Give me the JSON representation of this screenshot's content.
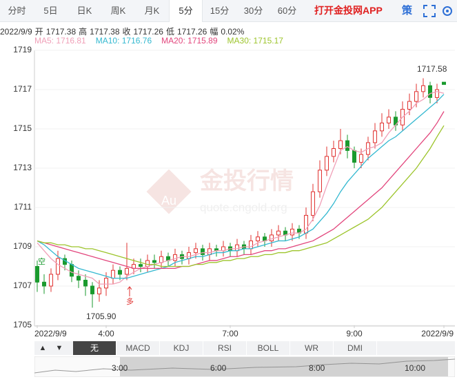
{
  "tabs": [
    "分时",
    "5日",
    "日K",
    "周K",
    "月K",
    "5分",
    "15分",
    "30分",
    "60分"
  ],
  "active_tab": 5,
  "app_link": "打开金投网APP",
  "strategy": "策",
  "info": {
    "date": "2022/9/9",
    "items": [
      {
        "label": "开",
        "value": "1717.38"
      },
      {
        "label": "高",
        "value": "1717.38"
      },
      {
        "label": "收",
        "value": "1717.26"
      },
      {
        "label": "低",
        "value": "1717.26"
      },
      {
        "label": "幅",
        "value": "0.02%"
      }
    ]
  },
  "indicators": [
    "无",
    "MACD",
    "KDJ",
    "RSI",
    "BOLL",
    "WR",
    "DMI"
  ],
  "active_indicator": 0,
  "arrows": [
    "▲",
    "▼"
  ],
  "navigator": {
    "labels": [
      "3:00",
      "6:00",
      "8:00",
      "10:00"
    ]
  },
  "watermark": [
    "金投行情",
    "Au",
    "quote.cngold.org"
  ],
  "signals": [
    "空",
    "多"
  ],
  "chart_data": {
    "type": "candlestick",
    "up_color": "#e0312f",
    "down_color": "#1a9a2e",
    "categories": [
      "2022/9/9",
      null,
      null,
      null,
      null,
      null,
      null,
      null,
      null,
      null,
      "4:00",
      null,
      null,
      null,
      null,
      null,
      null,
      null,
      null,
      null,
      null,
      null,
      null,
      null,
      null,
      null,
      null,
      null,
      "7:00",
      null,
      null,
      null,
      null,
      null,
      null,
      null,
      null,
      null,
      null,
      null,
      null,
      null,
      null,
      null,
      null,
      null,
      "9:00",
      null,
      null,
      null,
      null,
      null,
      null,
      null,
      null,
      null,
      null,
      null,
      null,
      "2022/9/9"
    ],
    "open": [
      1708.0,
      1707.2,
      1707.0,
      1707.6,
      1708.4,
      1708.1,
      1707.5,
      1707.3,
      1707.0,
      1706.6,
      1706.9,
      1707.4,
      1707.8,
      1707.6,
      1707.9,
      1708.1,
      1708.0,
      1708.3,
      1708.2,
      1708.5,
      1708.3,
      1708.6,
      1708.4,
      1708.7,
      1708.9,
      1708.6,
      1708.9,
      1708.8,
      1709.0,
      1708.8,
      1709.1,
      1708.9,
      1709.3,
      1709.5,
      1709.3,
      1709.6,
      1709.8,
      1709.6,
      1709.9,
      1709.7,
      1710.6,
      1711.8,
      1712.9,
      1713.6,
      1714.0,
      1714.4,
      1713.9,
      1713.3,
      1713.7,
      1714.3,
      1714.9,
      1715.3,
      1715.6,
      1715.2,
      1716.0,
      1716.4,
      1716.9,
      1717.2,
      1716.6,
      1717.38
    ],
    "high": [
      1708.3,
      1707.6,
      1707.9,
      1708.8,
      1708.6,
      1708.3,
      1707.8,
      1707.6,
      1707.2,
      1707.3,
      1707.7,
      1708.1,
      1708.0,
      1709.2,
      1708.4,
      1708.4,
      1708.6,
      1708.6,
      1708.8,
      1708.7,
      1708.9,
      1708.8,
      1709.0,
      1709.2,
      1709.1,
      1709.2,
      1709.1,
      1709.3,
      1709.2,
      1709.4,
      1709.3,
      1709.6,
      1709.8,
      1709.7,
      1709.9,
      1710.1,
      1710.0,
      1710.2,
      1710.1,
      1711.0,
      1712.2,
      1713.4,
      1714.1,
      1714.4,
      1715.0,
      1714.7,
      1714.1,
      1714.0,
      1714.6,
      1715.3,
      1715.8,
      1716.0,
      1715.9,
      1716.4,
      1716.8,
      1717.3,
      1717.58,
      1717.4,
      1717.3,
      1717.38
    ],
    "low": [
      1706.7,
      1706.6,
      1706.7,
      1707.3,
      1707.8,
      1707.2,
      1706.9,
      1706.5,
      1705.9,
      1706.2,
      1706.5,
      1707.1,
      1707.3,
      1707.3,
      1707.6,
      1707.7,
      1707.7,
      1707.9,
      1707.9,
      1708.0,
      1708.0,
      1708.1,
      1708.1,
      1708.4,
      1708.3,
      1708.3,
      1708.5,
      1708.5,
      1708.5,
      1708.5,
      1708.6,
      1708.6,
      1709.0,
      1709.0,
      1709.0,
      1709.3,
      1709.3,
      1709.3,
      1709.4,
      1709.4,
      1710.3,
      1711.5,
      1712.6,
      1713.3,
      1713.7,
      1713.5,
      1713.0,
      1713.0,
      1713.4,
      1714.0,
      1714.6,
      1715.0,
      1714.9,
      1714.9,
      1715.7,
      1716.1,
      1716.6,
      1716.3,
      1716.3,
      1717.26
    ],
    "close": [
      1707.2,
      1707.0,
      1707.6,
      1708.4,
      1708.1,
      1707.5,
      1707.3,
      1707.0,
      1706.6,
      1706.9,
      1707.4,
      1707.8,
      1707.6,
      1707.9,
      1708.1,
      1708.0,
      1708.3,
      1708.2,
      1708.5,
      1708.3,
      1708.6,
      1708.4,
      1708.7,
      1708.9,
      1708.6,
      1708.9,
      1708.8,
      1709.0,
      1708.8,
      1709.1,
      1708.9,
      1709.3,
      1709.5,
      1709.3,
      1709.6,
      1709.8,
      1709.6,
      1709.9,
      1709.7,
      1710.6,
      1711.8,
      1712.9,
      1713.6,
      1714.0,
      1714.4,
      1713.9,
      1713.3,
      1713.7,
      1714.3,
      1714.9,
      1715.3,
      1715.6,
      1715.2,
      1716.0,
      1716.4,
      1716.9,
      1717.2,
      1716.6,
      1717.0,
      1717.26
    ],
    "series": [
      {
        "legend": "MA5: 1716.81",
        "color": "#f0a0b8",
        "values": [
          1709.2,
          1708.8,
          1708.4,
          1708.1,
          1707.9,
          1707.7,
          1707.6,
          1707.5,
          1707.4,
          1707.1,
          1707.1,
          1707.1,
          1707.2,
          1707.5,
          1707.7,
          1707.9,
          1708.0,
          1708.1,
          1708.2,
          1708.3,
          1708.4,
          1708.5,
          1708.5,
          1708.6,
          1708.7,
          1708.7,
          1708.8,
          1708.8,
          1708.9,
          1708.9,
          1709.0,
          1709.0,
          1709.2,
          1709.3,
          1709.4,
          1709.5,
          1709.6,
          1709.7,
          1709.7,
          1709.9,
          1710.4,
          1711.1,
          1712.1,
          1713.0,
          1713.9,
          1714.1,
          1713.9,
          1713.8,
          1714.0,
          1714.1,
          1714.3,
          1714.8,
          1715.2,
          1715.6,
          1715.9,
          1716.3,
          1716.5,
          1716.8,
          1716.9,
          1716.81
        ]
      },
      {
        "legend": "MA10: 1716.76",
        "color": "#33b8d0",
        "values": [
          1709.3,
          1709.1,
          1708.8,
          1708.5,
          1708.3,
          1708.1,
          1707.9,
          1707.8,
          1707.7,
          1707.6,
          1707.5,
          1707.4,
          1707.4,
          1707.4,
          1707.5,
          1707.6,
          1707.7,
          1707.8,
          1707.9,
          1708.0,
          1708.2,
          1708.3,
          1708.4,
          1708.5,
          1708.5,
          1708.6,
          1708.7,
          1708.7,
          1708.8,
          1708.8,
          1708.9,
          1708.9,
          1709.0,
          1709.1,
          1709.2,
          1709.3,
          1709.3,
          1709.4,
          1709.5,
          1709.7,
          1709.9,
          1710.3,
          1710.7,
          1711.2,
          1711.8,
          1712.3,
          1712.7,
          1713.1,
          1713.5,
          1713.8,
          1714.1,
          1714.4,
          1714.6,
          1714.9,
          1715.2,
          1715.5,
          1715.8,
          1716.1,
          1716.4,
          1716.76
        ]
      },
      {
        "legend": "MA20: 1715.89",
        "color": "#e2457c",
        "values": [
          1709.3,
          1709.2,
          1709.1,
          1709.0,
          1708.9,
          1708.8,
          1708.7,
          1708.6,
          1708.5,
          1708.4,
          1708.3,
          1708.2,
          1708.1,
          1708.0,
          1707.9,
          1707.9,
          1707.9,
          1707.9,
          1707.9,
          1707.9,
          1707.9,
          1708.0,
          1708.0,
          1708.1,
          1708.2,
          1708.3,
          1708.3,
          1708.4,
          1708.5,
          1708.5,
          1708.6,
          1708.6,
          1708.7,
          1708.8,
          1708.8,
          1708.9,
          1708.9,
          1709.0,
          1709.1,
          1709.2,
          1709.3,
          1709.5,
          1709.7,
          1709.9,
          1710.2,
          1710.5,
          1710.8,
          1711.1,
          1711.4,
          1711.7,
          1712.0,
          1712.4,
          1712.8,
          1713.2,
          1713.6,
          1714.0,
          1714.4,
          1714.8,
          1715.3,
          1715.89
        ]
      },
      {
        "legend": "MA30: 1715.17",
        "color": "#9cc42a",
        "values": [
          1709.3,
          1709.2,
          1709.2,
          1709.1,
          1709.1,
          1709.0,
          1709.0,
          1708.9,
          1708.9,
          1708.8,
          1708.7,
          1708.6,
          1708.5,
          1708.4,
          1708.3,
          1708.2,
          1708.1,
          1708.1,
          1708.0,
          1708.0,
          1708.0,
          1708.0,
          1708.0,
          1708.1,
          1708.1,
          1708.2,
          1708.2,
          1708.3,
          1708.3,
          1708.4,
          1708.4,
          1708.5,
          1708.5,
          1708.6,
          1708.6,
          1708.7,
          1708.7,
          1708.8,
          1708.8,
          1708.9,
          1709.0,
          1709.1,
          1709.2,
          1709.4,
          1709.6,
          1709.8,
          1710.0,
          1710.2,
          1710.4,
          1710.7,
          1711.0,
          1711.4,
          1711.8,
          1712.2,
          1712.6,
          1713.0,
          1713.5,
          1714.0,
          1714.6,
          1715.17
        ]
      }
    ],
    "annotations": [
      "1717.58",
      "1705.90"
    ],
    "ylim": [
      1705,
      1719
    ],
    "yticks": [
      1705,
      1707,
      1709,
      1711,
      1713,
      1715,
      1717,
      1719
    ],
    "grid": true
  }
}
